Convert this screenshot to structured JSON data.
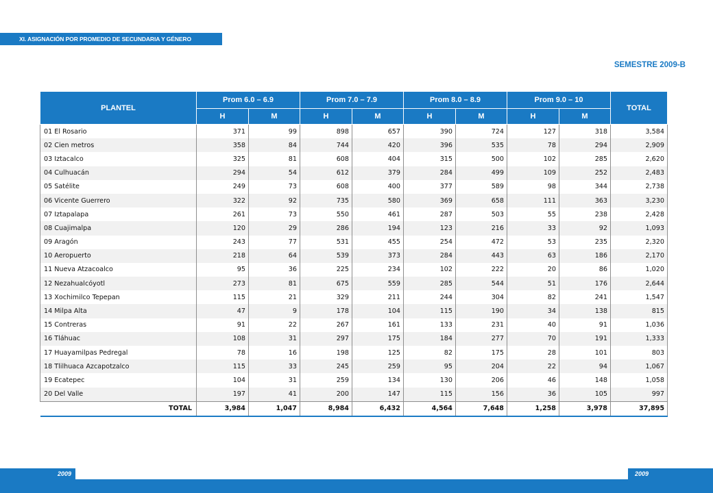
{
  "header": {
    "section_title": "XI.  ASIGNACIÓN POR PROMEDIO DE SECUNDARIA Y GÉNERO",
    "semester": "SEMESTRE 2009-B"
  },
  "table": {
    "col_plantel": "PLANTEL",
    "groups": [
      "Prom 6.0 – 6.9",
      "Prom 7.0 – 7.9",
      "Prom 8.0 – 8.9",
      "Prom 9.0 – 10"
    ],
    "col_total": "TOTAL",
    "sub": [
      "H",
      "M",
      "H",
      "M",
      "H",
      "M",
      "H",
      "M"
    ],
    "rows": [
      {
        "name": "01 El Rosario",
        "v": [
          "371",
          "99",
          "898",
          "657",
          "390",
          "724",
          "127",
          "318",
          "3,584"
        ]
      },
      {
        "name": "02 Cien metros",
        "v": [
          "358",
          "84",
          "744",
          "420",
          "396",
          "535",
          "78",
          "294",
          "2,909"
        ]
      },
      {
        "name": "03 Iztacalco",
        "v": [
          "325",
          "81",
          "608",
          "404",
          "315",
          "500",
          "102",
          "285",
          "2,620"
        ]
      },
      {
        "name": "04 Culhuacán",
        "v": [
          "294",
          "54",
          "612",
          "379",
          "284",
          "499",
          "109",
          "252",
          "2,483"
        ]
      },
      {
        "name": "05 Satélite",
        "v": [
          "249",
          "73",
          "608",
          "400",
          "377",
          "589",
          "98",
          "344",
          "2,738"
        ]
      },
      {
        "name": "06 Vicente Guerrero",
        "v": [
          "322",
          "92",
          "735",
          "580",
          "369",
          "658",
          "111",
          "363",
          "3,230"
        ]
      },
      {
        "name": "07 Iztapalapa",
        "v": [
          "261",
          "73",
          "550",
          "461",
          "287",
          "503",
          "55",
          "238",
          "2,428"
        ]
      },
      {
        "name": "08 Cuajimalpa",
        "v": [
          "120",
          "29",
          "286",
          "194",
          "123",
          "216",
          "33",
          "92",
          "1,093"
        ]
      },
      {
        "name": "09 Aragón",
        "v": [
          "243",
          "77",
          "531",
          "455",
          "254",
          "472",
          "53",
          "235",
          "2,320"
        ]
      },
      {
        "name": "10 Aeropuerto",
        "v": [
          "218",
          "64",
          "539",
          "373",
          "284",
          "443",
          "63",
          "186",
          "2,170"
        ]
      },
      {
        "name": "11 Nueva Atzacoalco",
        "v": [
          "95",
          "36",
          "225",
          "234",
          "102",
          "222",
          "20",
          "86",
          "1,020"
        ]
      },
      {
        "name": "12 Nezahualcóyotl",
        "v": [
          "273",
          "81",
          "675",
          "559",
          "285",
          "544",
          "51",
          "176",
          "2,644"
        ]
      },
      {
        "name": "13 Xochimilco Tepepan",
        "v": [
          "115",
          "21",
          "329",
          "211",
          "244",
          "304",
          "82",
          "241",
          "1,547"
        ]
      },
      {
        "name": "14 Milpa Alta",
        "v": [
          "47",
          "9",
          "178",
          "104",
          "115",
          "190",
          "34",
          "138",
          "815"
        ]
      },
      {
        "name": "15 Contreras",
        "v": [
          "91",
          "22",
          "267",
          "161",
          "133",
          "231",
          "40",
          "91",
          "1,036"
        ]
      },
      {
        "name": "16 Tláhuac",
        "v": [
          "108",
          "31",
          "297",
          "175",
          "184",
          "277",
          "70",
          "191",
          "1,333"
        ]
      },
      {
        "name": "17 Huayamilpas Pedregal",
        "v": [
          "78",
          "16",
          "198",
          "125",
          "82",
          "175",
          "28",
          "101",
          "803"
        ]
      },
      {
        "name": "18 Tlilhuaca Azcapotzalco",
        "v": [
          "115",
          "33",
          "245",
          "259",
          "95",
          "204",
          "22",
          "94",
          "1,067"
        ]
      },
      {
        "name": "19 Ecatepec",
        "v": [
          "104",
          "31",
          "259",
          "134",
          "130",
          "206",
          "46",
          "148",
          "1,058"
        ]
      },
      {
        "name": "20 Del Valle",
        "v": [
          "197",
          "41",
          "200",
          "147",
          "115",
          "156",
          "36",
          "105",
          "997"
        ]
      }
    ],
    "total_row": {
      "label": "TOTAL",
      "v": [
        "3,984",
        "1,047",
        "8,984",
        "6,432",
        "4,564",
        "7,648",
        "1,258",
        "3,978",
        "37,895"
      ]
    }
  },
  "footer": {
    "year_left": "2009",
    "year_right": "2009"
  },
  "colors": {
    "accent": "#1a7ac4"
  }
}
